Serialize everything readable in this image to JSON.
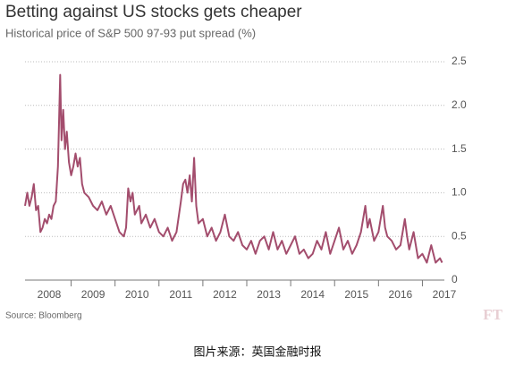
{
  "chart_data": {
    "type": "line",
    "title": "Betting against US stocks gets cheaper",
    "subtitle": "Historical price of S&P 500 97-93 put spread (%)",
    "source": "Source: Bloomberg",
    "logo": "FT",
    "caption": "图片来源：英国金融时报",
    "x": [
      2007.95,
      2008.0,
      2008.05,
      2008.1,
      2008.15,
      2008.2,
      2008.25,
      2008.3,
      2008.35,
      2008.4,
      2008.45,
      2008.5,
      2008.55,
      2008.6,
      2008.65,
      2008.7,
      2008.75,
      2008.78,
      2008.82,
      2008.86,
      2008.9,
      2008.95,
      2009.0,
      2009.05,
      2009.1,
      2009.15,
      2009.2,
      2009.25,
      2009.3,
      2009.4,
      2009.5,
      2009.6,
      2009.7,
      2009.8,
      2009.9,
      2010.0,
      2010.1,
      2010.2,
      2010.25,
      2010.3,
      2010.35,
      2010.4,
      2010.45,
      2010.55,
      2010.6,
      2010.7,
      2010.8,
      2010.9,
      2011.0,
      2011.1,
      2011.2,
      2011.3,
      2011.4,
      2011.5,
      2011.55,
      2011.6,
      2011.65,
      2011.7,
      2011.75,
      2011.8,
      2011.85,
      2011.9,
      2012.0,
      2012.1,
      2012.2,
      2012.3,
      2012.4,
      2012.5,
      2012.6,
      2012.7,
      2012.8,
      2012.9,
      2013.0,
      2013.1,
      2013.2,
      2013.3,
      2013.4,
      2013.5,
      2013.6,
      2013.7,
      2013.8,
      2013.9,
      2014.0,
      2014.1,
      2014.2,
      2014.3,
      2014.4,
      2014.5,
      2014.6,
      2014.7,
      2014.8,
      2014.9,
      2015.0,
      2015.1,
      2015.2,
      2015.3,
      2015.4,
      2015.5,
      2015.6,
      2015.7,
      2015.75,
      2015.8,
      2015.9,
      2016.0,
      2016.1,
      2016.15,
      2016.2,
      2016.3,
      2016.4,
      2016.5,
      2016.6,
      2016.65,
      2016.7,
      2016.8,
      2016.9,
      2017.0,
      2017.1,
      2017.2,
      2017.3,
      2017.4,
      2017.45
    ],
    "series": [
      {
        "color": "#a34d6d",
        "values": [
          0.85,
          1.0,
          0.85,
          0.95,
          1.1,
          0.8,
          0.85,
          0.55,
          0.6,
          0.7,
          0.65,
          0.75,
          0.7,
          0.85,
          0.9,
          1.3,
          2.35,
          1.6,
          1.95,
          1.5,
          1.7,
          1.35,
          1.2,
          1.3,
          1.45,
          1.3,
          1.4,
          1.1,
          1.0,
          0.95,
          0.85,
          0.8,
          0.9,
          0.75,
          0.85,
          0.7,
          0.55,
          0.5,
          0.6,
          1.05,
          0.9,
          1.0,
          0.75,
          0.85,
          0.65,
          0.75,
          0.6,
          0.7,
          0.55,
          0.5,
          0.6,
          0.45,
          0.55,
          0.9,
          1.1,
          1.15,
          1.0,
          1.2,
          0.9,
          1.4,
          0.85,
          0.65,
          0.7,
          0.5,
          0.6,
          0.45,
          0.55,
          0.75,
          0.5,
          0.45,
          0.55,
          0.4,
          0.35,
          0.45,
          0.3,
          0.45,
          0.5,
          0.35,
          0.55,
          0.35,
          0.45,
          0.3,
          0.4,
          0.5,
          0.3,
          0.35,
          0.25,
          0.3,
          0.45,
          0.35,
          0.55,
          0.3,
          0.45,
          0.6,
          0.35,
          0.45,
          0.3,
          0.4,
          0.55,
          0.85,
          0.6,
          0.7,
          0.45,
          0.55,
          0.85,
          0.6,
          0.5,
          0.45,
          0.35,
          0.4,
          0.7,
          0.5,
          0.35,
          0.55,
          0.25,
          0.3,
          0.2,
          0.4,
          0.2,
          0.25,
          0.2
        ]
      }
    ],
    "xlim": [
      2007.95,
      2017.5
    ],
    "xticks": [
      {
        "value": 2008.5,
        "label": "2008"
      },
      {
        "value": 2009.5,
        "label": "2009"
      },
      {
        "value": 2010.5,
        "label": "2010"
      },
      {
        "value": 2011.5,
        "label": "2011"
      },
      {
        "value": 2012.5,
        "label": "2012"
      },
      {
        "value": 2013.5,
        "label": "2013"
      },
      {
        "value": 2014.5,
        "label": "2014"
      },
      {
        "value": 2015.5,
        "label": "2015"
      },
      {
        "value": 2016.5,
        "label": "2016"
      },
      {
        "value": 2017.5,
        "label": "2017"
      }
    ],
    "xminor": [
      2009,
      2010,
      2011,
      2012,
      2013,
      2014,
      2015,
      2016,
      2017
    ],
    "ylim": [
      0,
      2.5
    ],
    "yticks": [
      0,
      {
        "value": 0.5,
        "label": "0.5"
      },
      {
        "value": 1,
        "label": "1.0"
      },
      {
        "value": 1.5,
        "label": "1.5"
      },
      {
        "value": 2,
        "label": "2.0"
      },
      {
        "value": 2.5,
        "label": "2.5"
      }
    ],
    "grid": true
  }
}
